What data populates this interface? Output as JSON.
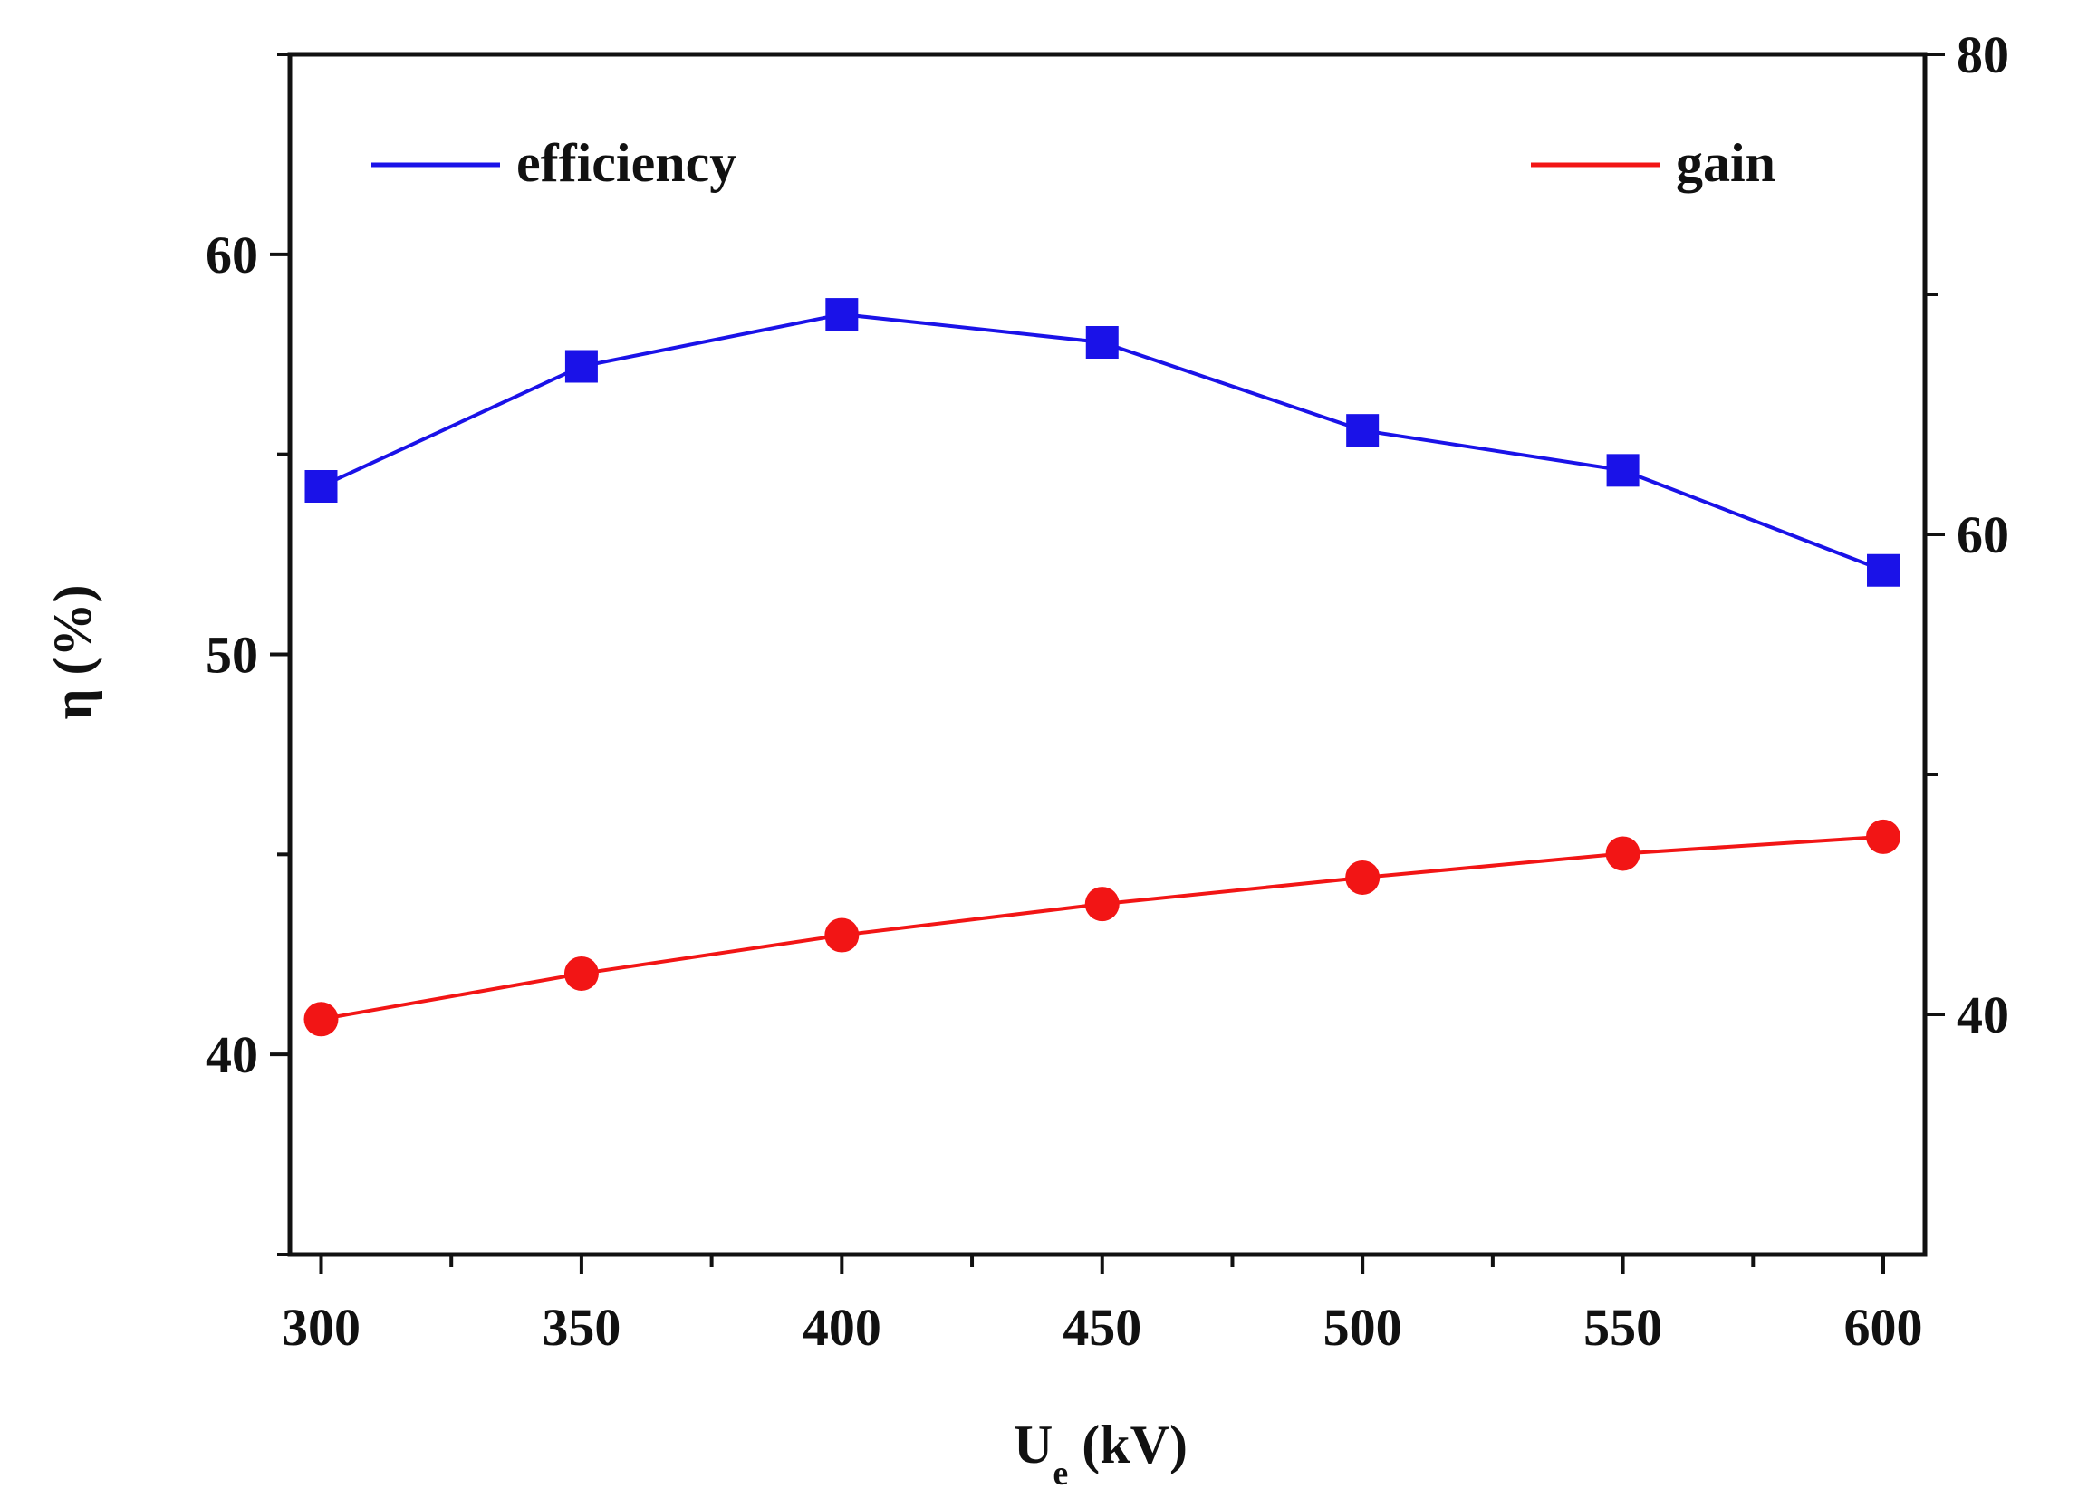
{
  "chart_data": {
    "type": "line",
    "xlabel": "U",
    "xlabel_sub": "e",
    "xlabel_unit": " (kV)",
    "ylabel_left": "η (%)",
    "ylabel_right": "",
    "x": [
      300,
      350,
      400,
      450,
      500,
      550,
      600
    ],
    "x_ticks": [
      300,
      350,
      400,
      450,
      500,
      550,
      600
    ],
    "xlim": [
      294,
      608
    ],
    "ylim_left": [
      35,
      65
    ],
    "y_left_ticks": [
      40,
      50,
      60
    ],
    "ylim_right": [
      30,
      80
    ],
    "y_right_ticks": [
      40,
      60,
      80
    ],
    "series": [
      {
        "name": "efficiency",
        "axis": "left",
        "marker": "square",
        "color": "#1a12e8",
        "values": [
          54.2,
          57.2,
          58.5,
          57.8,
          55.6,
          54.6,
          52.1
        ]
      },
      {
        "name": "gain",
        "axis": "right",
        "marker": "circle",
        "color": "#f21515",
        "values": [
          39.8,
          41.7,
          43.3,
          44.6,
          45.7,
          46.7,
          47.4
        ]
      }
    ],
    "legend": [
      {
        "label": "efficiency",
        "placement": "top-left"
      },
      {
        "label": "gain",
        "placement": "top-right"
      }
    ]
  }
}
